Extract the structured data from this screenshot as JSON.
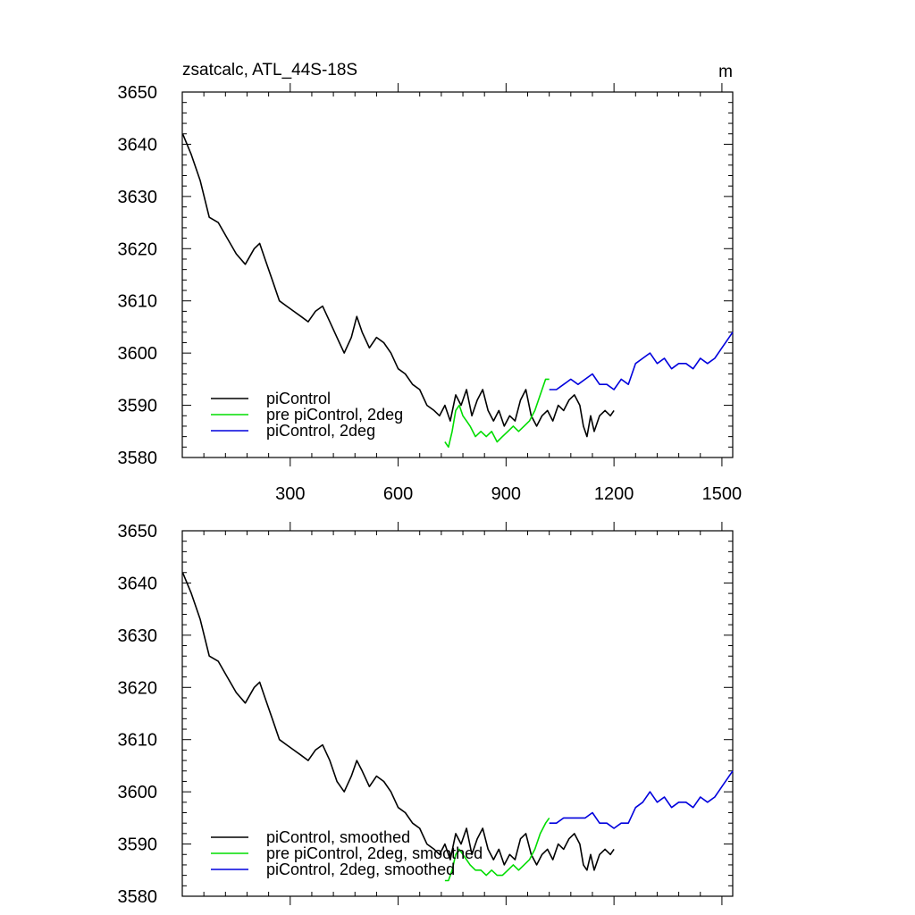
{
  "colors": {
    "piControl": "#000000",
    "pre_piControl_2deg": "#00dd00",
    "piControl_2deg": "#0000dd"
  },
  "chart_data": [
    {
      "type": "line",
      "title": "zsatcalc, ATL_44S-18S",
      "units": "m",
      "xlim": [
        0,
        1530
      ],
      "ylim": [
        3580,
        3650
      ],
      "xticks": [
        300,
        600,
        900,
        1200,
        1500
      ],
      "xtick_labels": [
        "300",
        "600",
        "900",
        "1200",
        "1500"
      ],
      "yticks": [
        3580,
        3590,
        3600,
        3610,
        3620,
        3630,
        3640,
        3650
      ],
      "ytick_labels": [
        "3580",
        "3590",
        "3600",
        "3610",
        "3620",
        "3630",
        "3640",
        "3650"
      ],
      "legend": "bottom-left",
      "series": [
        {
          "name": "piControl",
          "color": "#000000",
          "x": [
            1,
            25,
            50,
            75,
            100,
            125,
            150,
            175,
            200,
            215,
            230,
            250,
            270,
            290,
            310,
            330,
            350,
            370,
            390,
            410,
            430,
            450,
            470,
            485,
            500,
            520,
            540,
            560,
            580,
            600,
            620,
            640,
            660,
            680,
            700,
            715,
            730,
            745,
            760,
            775,
            790,
            805,
            820,
            835,
            850,
            865,
            880,
            895,
            910,
            925,
            940,
            955,
            970,
            985,
            1000,
            1015,
            1030,
            1045,
            1060,
            1075,
            1090,
            1105,
            1115,
            1125,
            1135,
            1145,
            1160,
            1175,
            1190,
            1200
          ],
          "values": [
            3642,
            3638,
            3633,
            3626,
            3625,
            3622,
            3619,
            3617,
            3620,
            3621,
            3618,
            3614,
            3610,
            3609,
            3608,
            3607,
            3606,
            3608,
            3609,
            3606,
            3603,
            3600,
            3603,
            3607,
            3604,
            3601,
            3603,
            3602,
            3600,
            3597,
            3596,
            3594,
            3593,
            3590,
            3589,
            3588,
            3590,
            3587,
            3592,
            3590,
            3593,
            3588,
            3591,
            3593,
            3589,
            3587,
            3589,
            3586,
            3588,
            3587,
            3591,
            3593,
            3588,
            3586,
            3588,
            3589,
            3587,
            3590,
            3589,
            3591,
            3592,
            3590,
            3586,
            3584,
            3588,
            3585,
            3588,
            3589,
            3588,
            3589
          ]
        },
        {
          "name": "pre piControl, 2deg",
          "color": "#00dd00",
          "x": [
            730,
            740,
            750,
            760,
            770,
            780,
            790,
            800,
            815,
            830,
            845,
            860,
            875,
            890,
            905,
            920,
            935,
            950,
            965,
            980,
            995,
            1010,
            1020
          ],
          "values": [
            3583,
            3582,
            3585,
            3589,
            3590,
            3588,
            3587,
            3586,
            3584,
            3585,
            3584,
            3585,
            3583,
            3584,
            3585,
            3586,
            3585,
            3586,
            3587,
            3589,
            3592,
            3595,
            3595
          ]
        },
        {
          "name": "piControl, 2deg",
          "color": "#0000dd",
          "x": [
            1020,
            1040,
            1060,
            1080,
            1100,
            1120,
            1140,
            1160,
            1180,
            1200,
            1220,
            1240,
            1260,
            1280,
            1300,
            1320,
            1340,
            1360,
            1380,
            1400,
            1420,
            1440,
            1460,
            1480,
            1500,
            1520,
            1530
          ],
          "values": [
            3593,
            3593,
            3594,
            3595,
            3594,
            3595,
            3596,
            3594,
            3594,
            3593,
            3595,
            3594,
            3598,
            3599,
            3600,
            3598,
            3599,
            3597,
            3598,
            3598,
            3597,
            3599,
            3598,
            3599,
            3601,
            3603,
            3604
          ]
        }
      ]
    },
    {
      "type": "line",
      "xlim": [
        0,
        1530
      ],
      "ylim": [
        3580,
        3650
      ],
      "xticks": [
        300,
        600,
        900,
        1200,
        1500
      ],
      "yticks": [
        3580,
        3590,
        3600,
        3610,
        3620,
        3630,
        3640,
        3650
      ],
      "ytick_labels": [
        "3580",
        "3590",
        "3600",
        "3610",
        "3620",
        "3630",
        "3640",
        "3650"
      ],
      "legend": "bottom-left",
      "series": [
        {
          "name": "piControl, smoothed",
          "color": "#000000",
          "x": [
            1,
            25,
            50,
            75,
            100,
            125,
            150,
            175,
            200,
            215,
            230,
            250,
            270,
            290,
            310,
            330,
            350,
            370,
            390,
            410,
            430,
            450,
            470,
            485,
            500,
            520,
            540,
            560,
            580,
            600,
            620,
            640,
            660,
            680,
            700,
            715,
            730,
            745,
            760,
            775,
            790,
            805,
            820,
            835,
            850,
            865,
            880,
            895,
            910,
            925,
            940,
            955,
            970,
            985,
            1000,
            1015,
            1030,
            1045,
            1060,
            1075,
            1090,
            1105,
            1115,
            1125,
            1135,
            1145,
            1160,
            1175,
            1190,
            1200
          ],
          "values": [
            3642,
            3638,
            3633,
            3626,
            3625,
            3622,
            3619,
            3617,
            3620,
            3621,
            3618,
            3614,
            3610,
            3609,
            3608,
            3607,
            3606,
            3608,
            3609,
            3606,
            3602,
            3600,
            3603,
            3606,
            3604,
            3601,
            3603,
            3602,
            3600,
            3597,
            3596,
            3594,
            3593,
            3590,
            3589,
            3588,
            3590,
            3587,
            3592,
            3590,
            3593,
            3588,
            3591,
            3593,
            3589,
            3587,
            3589,
            3586,
            3588,
            3587,
            3591,
            3592,
            3588,
            3586,
            3588,
            3589,
            3587,
            3590,
            3589,
            3591,
            3592,
            3590,
            3586,
            3585,
            3588,
            3585,
            3588,
            3589,
            3588,
            3589
          ]
        },
        {
          "name": "pre piControl, 2deg, smoothed",
          "color": "#00dd00",
          "x": [
            730,
            740,
            750,
            760,
            770,
            780,
            790,
            800,
            815,
            830,
            845,
            860,
            875,
            890,
            905,
            920,
            935,
            950,
            965,
            980,
            995,
            1010,
            1020
          ],
          "values": [
            3583,
            3583,
            3585,
            3588,
            3589,
            3588,
            3587,
            3586,
            3585,
            3585,
            3584,
            3585,
            3584,
            3584,
            3585,
            3586,
            3585,
            3586,
            3587,
            3589,
            3592,
            3594,
            3595
          ]
        },
        {
          "name": "piControl, 2deg, smoothed",
          "color": "#0000dd",
          "x": [
            1020,
            1040,
            1060,
            1080,
            1100,
            1120,
            1140,
            1160,
            1180,
            1200,
            1220,
            1240,
            1260,
            1280,
            1300,
            1320,
            1340,
            1360,
            1380,
            1400,
            1420,
            1440,
            1460,
            1480,
            1500,
            1520,
            1530
          ],
          "values": [
            3594,
            3594,
            3595,
            3595,
            3595,
            3595,
            3596,
            3594,
            3594,
            3593,
            3594,
            3594,
            3597,
            3598,
            3600,
            3598,
            3599,
            3597,
            3598,
            3598,
            3597,
            3599,
            3598,
            3599,
            3601,
            3603,
            3604
          ]
        }
      ]
    }
  ]
}
